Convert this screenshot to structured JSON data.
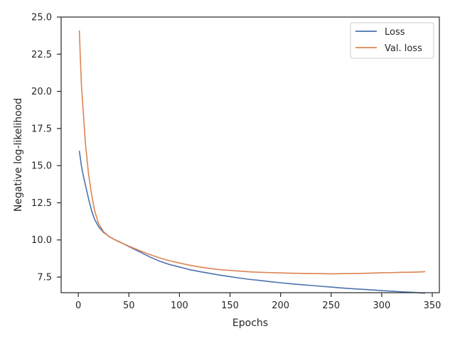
{
  "chart_data": {
    "type": "line",
    "title": "",
    "xlabel": "Epochs",
    "ylabel": "Negative log-likelihood",
    "xlim": [
      -17,
      357
    ],
    "ylim": [
      6.45,
      25.0
    ],
    "xticks": [
      0,
      50,
      100,
      150,
      200,
      250,
      300,
      350
    ],
    "xtick_labels": [
      "0",
      "50",
      "100",
      "150",
      "200",
      "250",
      "300",
      "350"
    ],
    "yticks": [
      7.5,
      10.0,
      12.5,
      15.0,
      17.5,
      20.0,
      22.5,
      25.0
    ],
    "ytick_labels": [
      "7.5",
      "10.0",
      "12.5",
      "15.0",
      "17.5",
      "20.0",
      "22.5",
      "25.0"
    ],
    "grid": false,
    "legend_position": "top-right",
    "series": [
      {
        "name": "Loss",
        "color": "#4c72b0",
        "x": [
          1,
          3,
          5,
          8,
          10,
          13,
          16,
          20,
          25,
          30,
          35,
          40,
          50,
          60,
          70,
          80,
          90,
          100,
          110,
          120,
          130,
          140,
          150,
          160,
          170,
          180,
          190,
          200,
          210,
          220,
          230,
          240,
          250,
          260,
          270,
          280,
          290,
          300,
          310,
          320,
          330,
          340,
          343
        ],
        "values": [
          16.0,
          15.0,
          14.3,
          13.4,
          12.8,
          12.0,
          11.4,
          10.9,
          10.5,
          10.25,
          10.05,
          9.9,
          9.55,
          9.22,
          8.88,
          8.58,
          8.35,
          8.18,
          8.0,
          7.87,
          7.75,
          7.63,
          7.53,
          7.43,
          7.34,
          7.27,
          7.19,
          7.12,
          7.05,
          6.99,
          6.94,
          6.88,
          6.83,
          6.77,
          6.72,
          6.68,
          6.64,
          6.59,
          6.55,
          6.51,
          6.48,
          6.43,
          6.42
        ]
      },
      {
        "name": "Val. loss",
        "color": "#dd8452",
        "x": [
          1,
          2,
          3,
          5,
          7,
          10,
          13,
          16,
          20,
          25,
          30,
          35,
          40,
          50,
          60,
          70,
          80,
          90,
          100,
          110,
          120,
          130,
          140,
          150,
          160,
          170,
          180,
          190,
          200,
          210,
          220,
          230,
          240,
          250,
          260,
          270,
          280,
          290,
          300,
          310,
          320,
          330,
          340,
          343
        ],
        "values": [
          24.1,
          22.2,
          20.5,
          18.5,
          16.5,
          14.5,
          13.1,
          12.0,
          11.1,
          10.55,
          10.25,
          10.05,
          9.88,
          9.58,
          9.3,
          9.03,
          8.8,
          8.6,
          8.45,
          8.3,
          8.18,
          8.08,
          8.0,
          7.95,
          7.9,
          7.85,
          7.82,
          7.8,
          7.78,
          7.76,
          7.75,
          7.74,
          7.73,
          7.72,
          7.73,
          7.74,
          7.75,
          7.77,
          7.79,
          7.8,
          7.82,
          7.83,
          7.85,
          7.87
        ]
      }
    ]
  }
}
